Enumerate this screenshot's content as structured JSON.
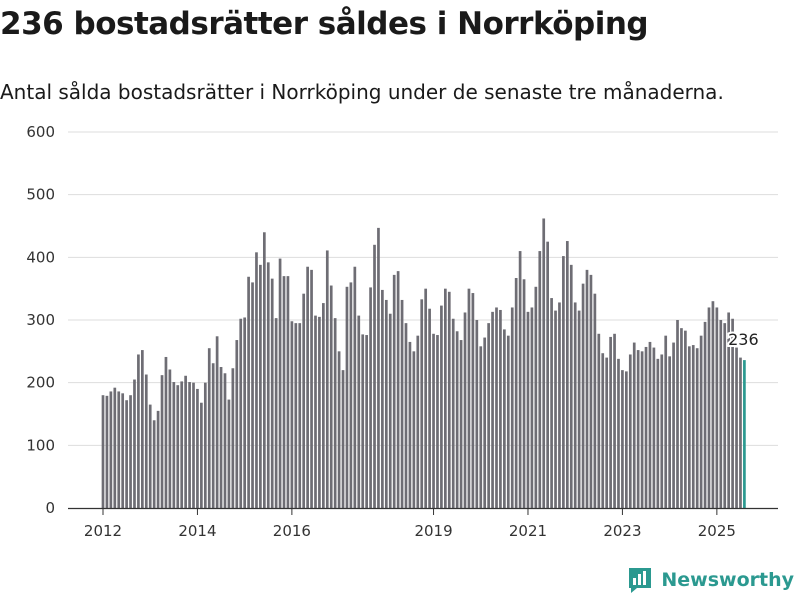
{
  "header": {
    "title": "236 bostadsrätter såldes i Norrköping",
    "subtitle": "Antal sålda bostadsrätter i Norrköping under de senaste tre månaderna."
  },
  "branding": {
    "name": "Newsworthy",
    "icon": "newsworthy-logo-icon",
    "color": "#2b9990"
  },
  "chart_data": {
    "type": "bar",
    "title": "236 bostadsrätter såldes i Norrköping",
    "subtitle": "Antal sålda bostadsrätter i Norrköping under de senaste tre månaderna.",
    "xlabel": "",
    "ylabel": "",
    "ylim": [
      0,
      600
    ],
    "yticks": [
      0,
      100,
      200,
      300,
      400,
      500,
      600
    ],
    "xticks": [
      "2012",
      "2014",
      "2016",
      "2019",
      "2021",
      "2023",
      "2025"
    ],
    "grid": true,
    "legend": "none",
    "bar_color": "#6e6d74",
    "highlight_color": "#2b9990",
    "last_value_label": "236",
    "start_month": "2012-01",
    "values": [
      180,
      179,
      186,
      192,
      186,
      183,
      172,
      180,
      205,
      245,
      252,
      213,
      165,
      140,
      155,
      212,
      241,
      221,
      201,
      196,
      202,
      211,
      201,
      200,
      190,
      168,
      200,
      255,
      231,
      274,
      225,
      215,
      173,
      223,
      268,
      302,
      304,
      369,
      360,
      408,
      388,
      440,
      392,
      366,
      303,
      398,
      370,
      370,
      298,
      295,
      295,
      342,
      385,
      380,
      307,
      305,
      327,
      411,
      355,
      303,
      250,
      220,
      353,
      360,
      385,
      307,
      277,
      276,
      352,
      420,
      447,
      348,
      332,
      310,
      372,
      378,
      332,
      295,
      265,
      250,
      275,
      333,
      350,
      318,
      278,
      276,
      323,
      350,
      345,
      302,
      282,
      268,
      312,
      350,
      343,
      300,
      258,
      272,
      295,
      313,
      320,
      316,
      285,
      275,
      320,
      367,
      410,
      365,
      313,
      320,
      353,
      410,
      462,
      425,
      335,
      315,
      328,
      402,
      426,
      388,
      328,
      315,
      358,
      380,
      372,
      342,
      278,
      247,
      240,
      273,
      278,
      238,
      220,
      218,
      245,
      264,
      252,
      250,
      257,
      265,
      256,
      238,
      245,
      275,
      242,
      264,
      300,
      287,
      283,
      258,
      260,
      255,
      275,
      297,
      320,
      330,
      320,
      300,
      295,
      312,
      302,
      256,
      240,
      236
    ]
  }
}
